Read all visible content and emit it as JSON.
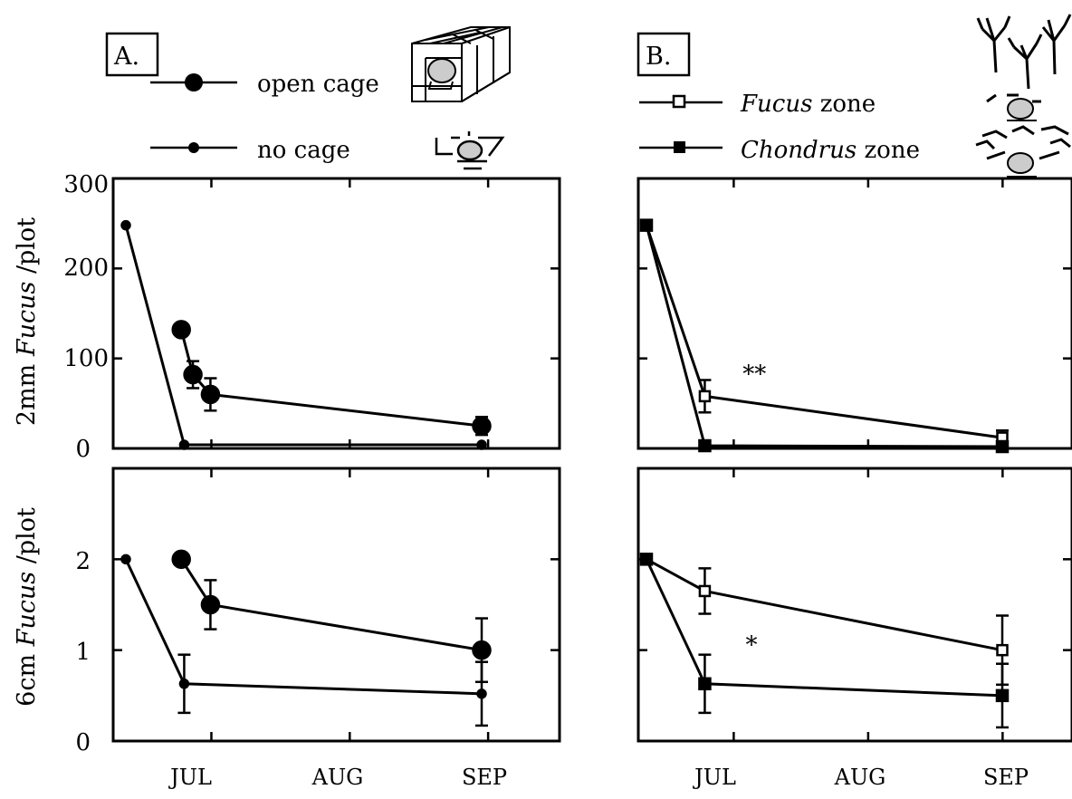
{
  "panels": [
    {
      "id": "A",
      "label": "A."
    },
    {
      "id": "B",
      "label": "B."
    }
  ],
  "legend": {
    "A": [
      {
        "text": "open cage",
        "marker": "filled-circle-large"
      },
      {
        "text": "no cage",
        "marker": "filled-circle-small"
      }
    ],
    "B": [
      {
        "italic": "Fucus",
        "text": " zone",
        "marker": "open-square"
      },
      {
        "italic": "Chondrus",
        "text": " zone",
        "marker": "filled-square"
      }
    ]
  },
  "icons": {
    "open_cage": "open-cage-icon",
    "no_cage": "plot-marker-icon",
    "fucus_zone": "fucus-canopy-icon",
    "chondrus_zone": "chondrus-turf-icon"
  },
  "axes": {
    "x_ticks": [
      "JUL",
      "AUG",
      "SEP"
    ],
    "top_ylabel": {
      "prefix": "2mm ",
      "italic": "Fucus",
      "suffix": " /plot"
    },
    "bottom_ylabel": {
      "prefix": "6cm ",
      "italic": "Fucus",
      "suffix": "  /plot"
    },
    "top_yticks": [
      "0",
      "100",
      "200",
      "300"
    ],
    "bottom_yticks": [
      "0",
      "1",
      "2"
    ]
  },
  "chart_data": [
    {
      "type": "line",
      "panel": "A-top",
      "ylim": [
        0,
        300
      ],
      "series": [
        {
          "name": "open cage",
          "points": [
            [
              0.95,
              132,
              0
            ],
            [
              1.15,
              82,
              15
            ],
            [
              1.45,
              60,
              18
            ],
            [
              6.1,
              25,
              10
            ]
          ]
        },
        {
          "name": "no cage",
          "points": [
            [
              0,
              248,
              0
            ],
            [
              1.0,
              4,
              0
            ],
            [
              6.1,
              4,
              0
            ]
          ]
        }
      ]
    },
    {
      "type": "line",
      "panel": "A-bottom",
      "ylim": [
        0,
        3
      ],
      "series": [
        {
          "name": "open cage",
          "points": [
            [
              0.95,
              2.0,
              0
            ],
            [
              1.45,
              1.5,
              0.27
            ],
            [
              6.1,
              1.0,
              0.35
            ]
          ]
        },
        {
          "name": "no cage",
          "points": [
            [
              0,
              2.0,
              0
            ],
            [
              1.0,
              0.63,
              0.32
            ],
            [
              6.1,
              0.52,
              0.35
            ]
          ]
        }
      ]
    },
    {
      "type": "line",
      "panel": "B-top",
      "ylim": [
        0,
        300
      ],
      "series": [
        {
          "name": "Fucus zone",
          "points": [
            [
              0,
              248,
              0
            ],
            [
              1.0,
              58,
              18
            ],
            [
              6.1,
              12,
              8
            ]
          ]
        },
        {
          "name": "Chondrus zone",
          "points": [
            [
              0,
              248,
              0
            ],
            [
              1.0,
              3,
              0
            ],
            [
              6.1,
              2,
              0
            ]
          ]
        }
      ],
      "annotation": {
        "text": "**",
        "x": 1.65,
        "y": 82
      }
    },
    {
      "type": "line",
      "panel": "B-bottom",
      "ylim": [
        0,
        3
      ],
      "series": [
        {
          "name": "Fucus zone",
          "points": [
            [
              0,
              2.0,
              0
            ],
            [
              1.0,
              1.65,
              0.25
            ],
            [
              6.1,
              1.0,
              0.38
            ]
          ]
        },
        {
          "name": "Chondrus zone",
          "points": [
            [
              0,
              2.0,
              0
            ],
            [
              1.0,
              0.63,
              0.32
            ],
            [
              6.1,
              0.5,
              0.35
            ]
          ]
        }
      ],
      "annotation": {
        "text": "*",
        "x": 1.7,
        "y": 1.05
      }
    }
  ]
}
